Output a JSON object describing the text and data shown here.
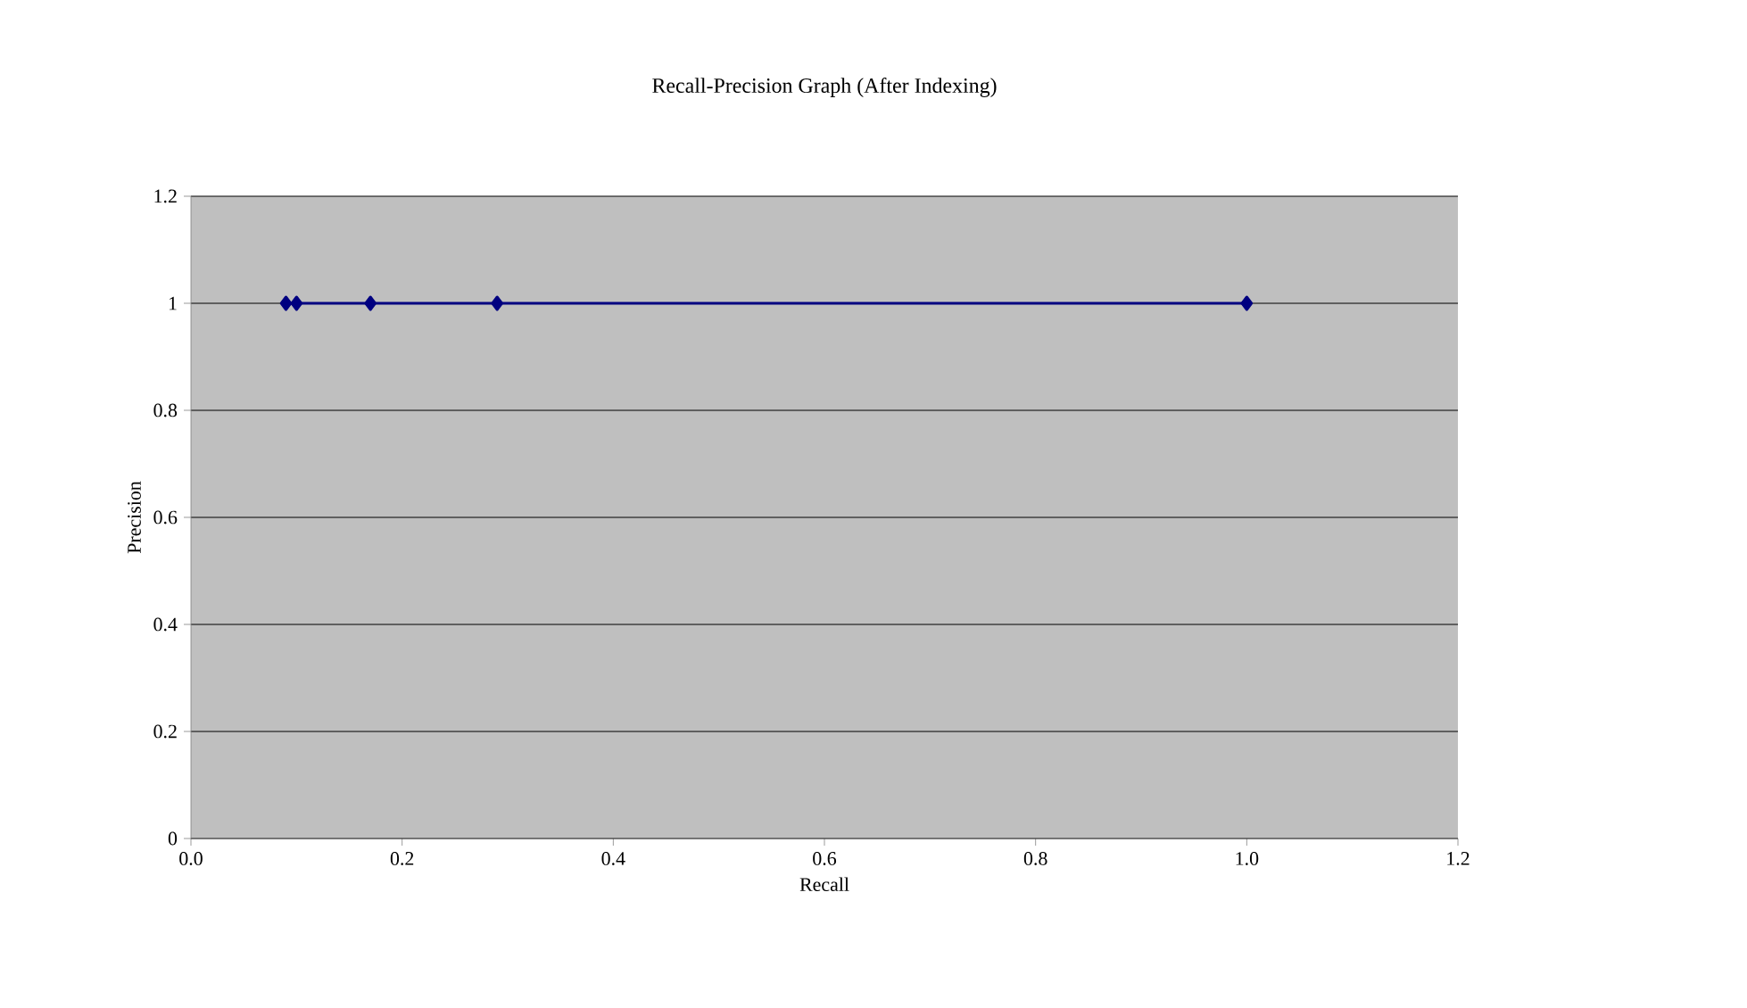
{
  "chart_data": {
    "type": "line",
    "title": "Recall-Precision Graph (After Indexing)",
    "xlabel": "Recall",
    "ylabel": "Precision",
    "x": [
      0.09,
      0.1,
      0.17,
      0.29,
      1.0
    ],
    "series": [
      {
        "color": "#000080",
        "values": [
          1,
          1,
          1,
          1,
          1
        ]
      }
    ],
    "xlim": [
      0,
      1.2
    ],
    "xticks": [
      {
        "value": 0,
        "label": "0.0"
      },
      {
        "value": 0.2,
        "label": "0.2"
      },
      {
        "value": 0.4,
        "label": "0.4"
      },
      {
        "value": 0.6,
        "label": "0.6"
      },
      {
        "value": 0.8,
        "label": "0.8"
      },
      {
        "value": 1.0,
        "label": "1.0"
      },
      {
        "value": 1.2,
        "label": "1.2"
      }
    ],
    "ylim": [
      0,
      1.2
    ],
    "yticks": [
      0,
      0.2,
      0.4,
      0.6,
      0.8,
      1,
      1.2
    ],
    "grid": "y",
    "marker": "diamond",
    "line_style": "solid"
  }
}
